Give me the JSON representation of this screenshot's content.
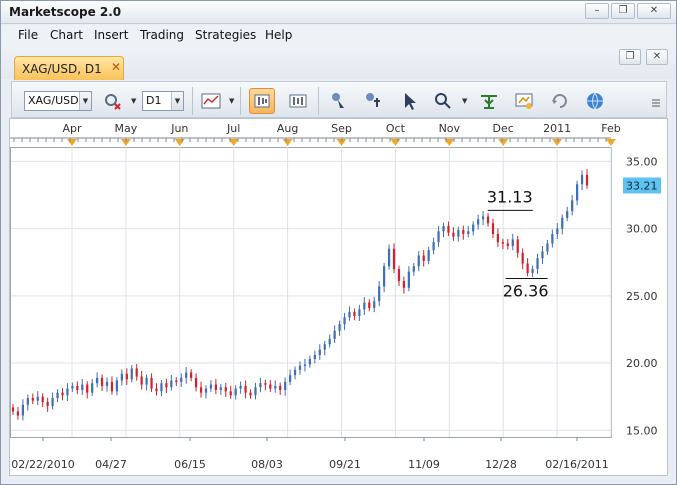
{
  "window": {
    "title": "Marketscope 2.0",
    "controls": [
      "–",
      "❐",
      "✕"
    ]
  },
  "menu": [
    "File",
    "Chart",
    "Insert",
    "Trading",
    "Strategies",
    "Help"
  ],
  "tab": {
    "label": "XAG/USD, D1",
    "close": "✕"
  },
  "doc_controls": [
    "❐",
    "✕"
  ],
  "toolbar": {
    "symbol": "XAG/USD",
    "timeframe": "D1",
    "icons": [
      "remove-indicator-icon",
      "chart-type-icon",
      "bar-chart-icon",
      "candle-chart-icon",
      "cursor-icon",
      "crosshair-icon",
      "pointer-icon",
      "zoom-icon",
      "add-indicator-icon",
      "properties-icon",
      "refresh-icon",
      "globe-icon",
      "overflow-icon"
    ]
  },
  "chart_data": {
    "type": "candlestick",
    "title": "",
    "xlabel": "",
    "ylabel": "",
    "ylim": [
      14.5,
      35.7
    ],
    "y_ticks": [
      "35.00",
      "30.00",
      "25.00",
      "20.00",
      "15.00"
    ],
    "top_month_labels": [
      "Apr",
      "May",
      "Jun",
      "Jul",
      "Aug",
      "Sep",
      "Oct",
      "Nov",
      "Dec",
      "2011",
      "Feb"
    ],
    "bottom_date_labels": [
      "02/22/2010",
      "04/27",
      "06/15",
      "08/03",
      "09/21",
      "11/09",
      "12/28",
      "02/16/2011"
    ],
    "last_price": "33.21",
    "annotations": [
      {
        "text": "31.13",
        "value": 31.13,
        "date": "12/31"
      },
      {
        "text": "26.36",
        "value": 26.36,
        "date": "01/28/2011"
      }
    ],
    "grid": true,
    "colors": {
      "up": "#3f6fb2",
      "down": "#d4202a",
      "last_price_bg": "#5fc2ef",
      "month_marker": "#f5a623"
    },
    "closes": [
      16.4,
      16.1,
      16.9,
      17.4,
      17.2,
      17.5,
      17.1,
      16.8,
      17.4,
      17.8,
      17.6,
      18.1,
      18.3,
      18.0,
      18.4,
      17.8,
      18.5,
      18.9,
      18.3,
      18.6,
      17.9,
      18.7,
      19.2,
      18.8,
      19.6,
      19.0,
      18.4,
      18.9,
      18.1,
      17.9,
      18.5,
      18.2,
      18.7,
      18.6,
      18.9,
      19.3,
      18.9,
      18.2,
      17.8,
      18.1,
      18.4,
      18.0,
      18.2,
      17.9,
      17.6,
      18.1,
      18.3,
      17.8,
      17.6,
      18.2,
      18.5,
      18.4,
      18.1,
      18.3,
      18.0,
      18.6,
      19.1,
      19.5,
      19.8,
      19.9,
      20.3,
      20.6,
      21.0,
      21.4,
      21.8,
      22.4,
      22.9,
      23.4,
      23.8,
      23.5,
      24.0,
      24.5,
      24.1,
      24.6,
      25.7,
      27.2,
      28.5,
      27.0,
      26.1,
      25.6,
      26.8,
      27.2,
      28.0,
      27.6,
      28.4,
      29.0,
      29.8,
      30.2,
      29.7,
      29.4,
      29.9,
      29.6,
      29.8,
      30.3,
      30.7,
      30.9,
      30.4,
      29.6,
      29.0,
      28.9,
      28.7,
      29.2,
      28.2,
      27.4,
      26.7,
      27.0,
      27.8,
      28.3,
      28.9,
      29.6,
      30.0,
      30.8,
      31.3,
      32.1,
      33.3,
      34.0,
      33.21
    ]
  }
}
